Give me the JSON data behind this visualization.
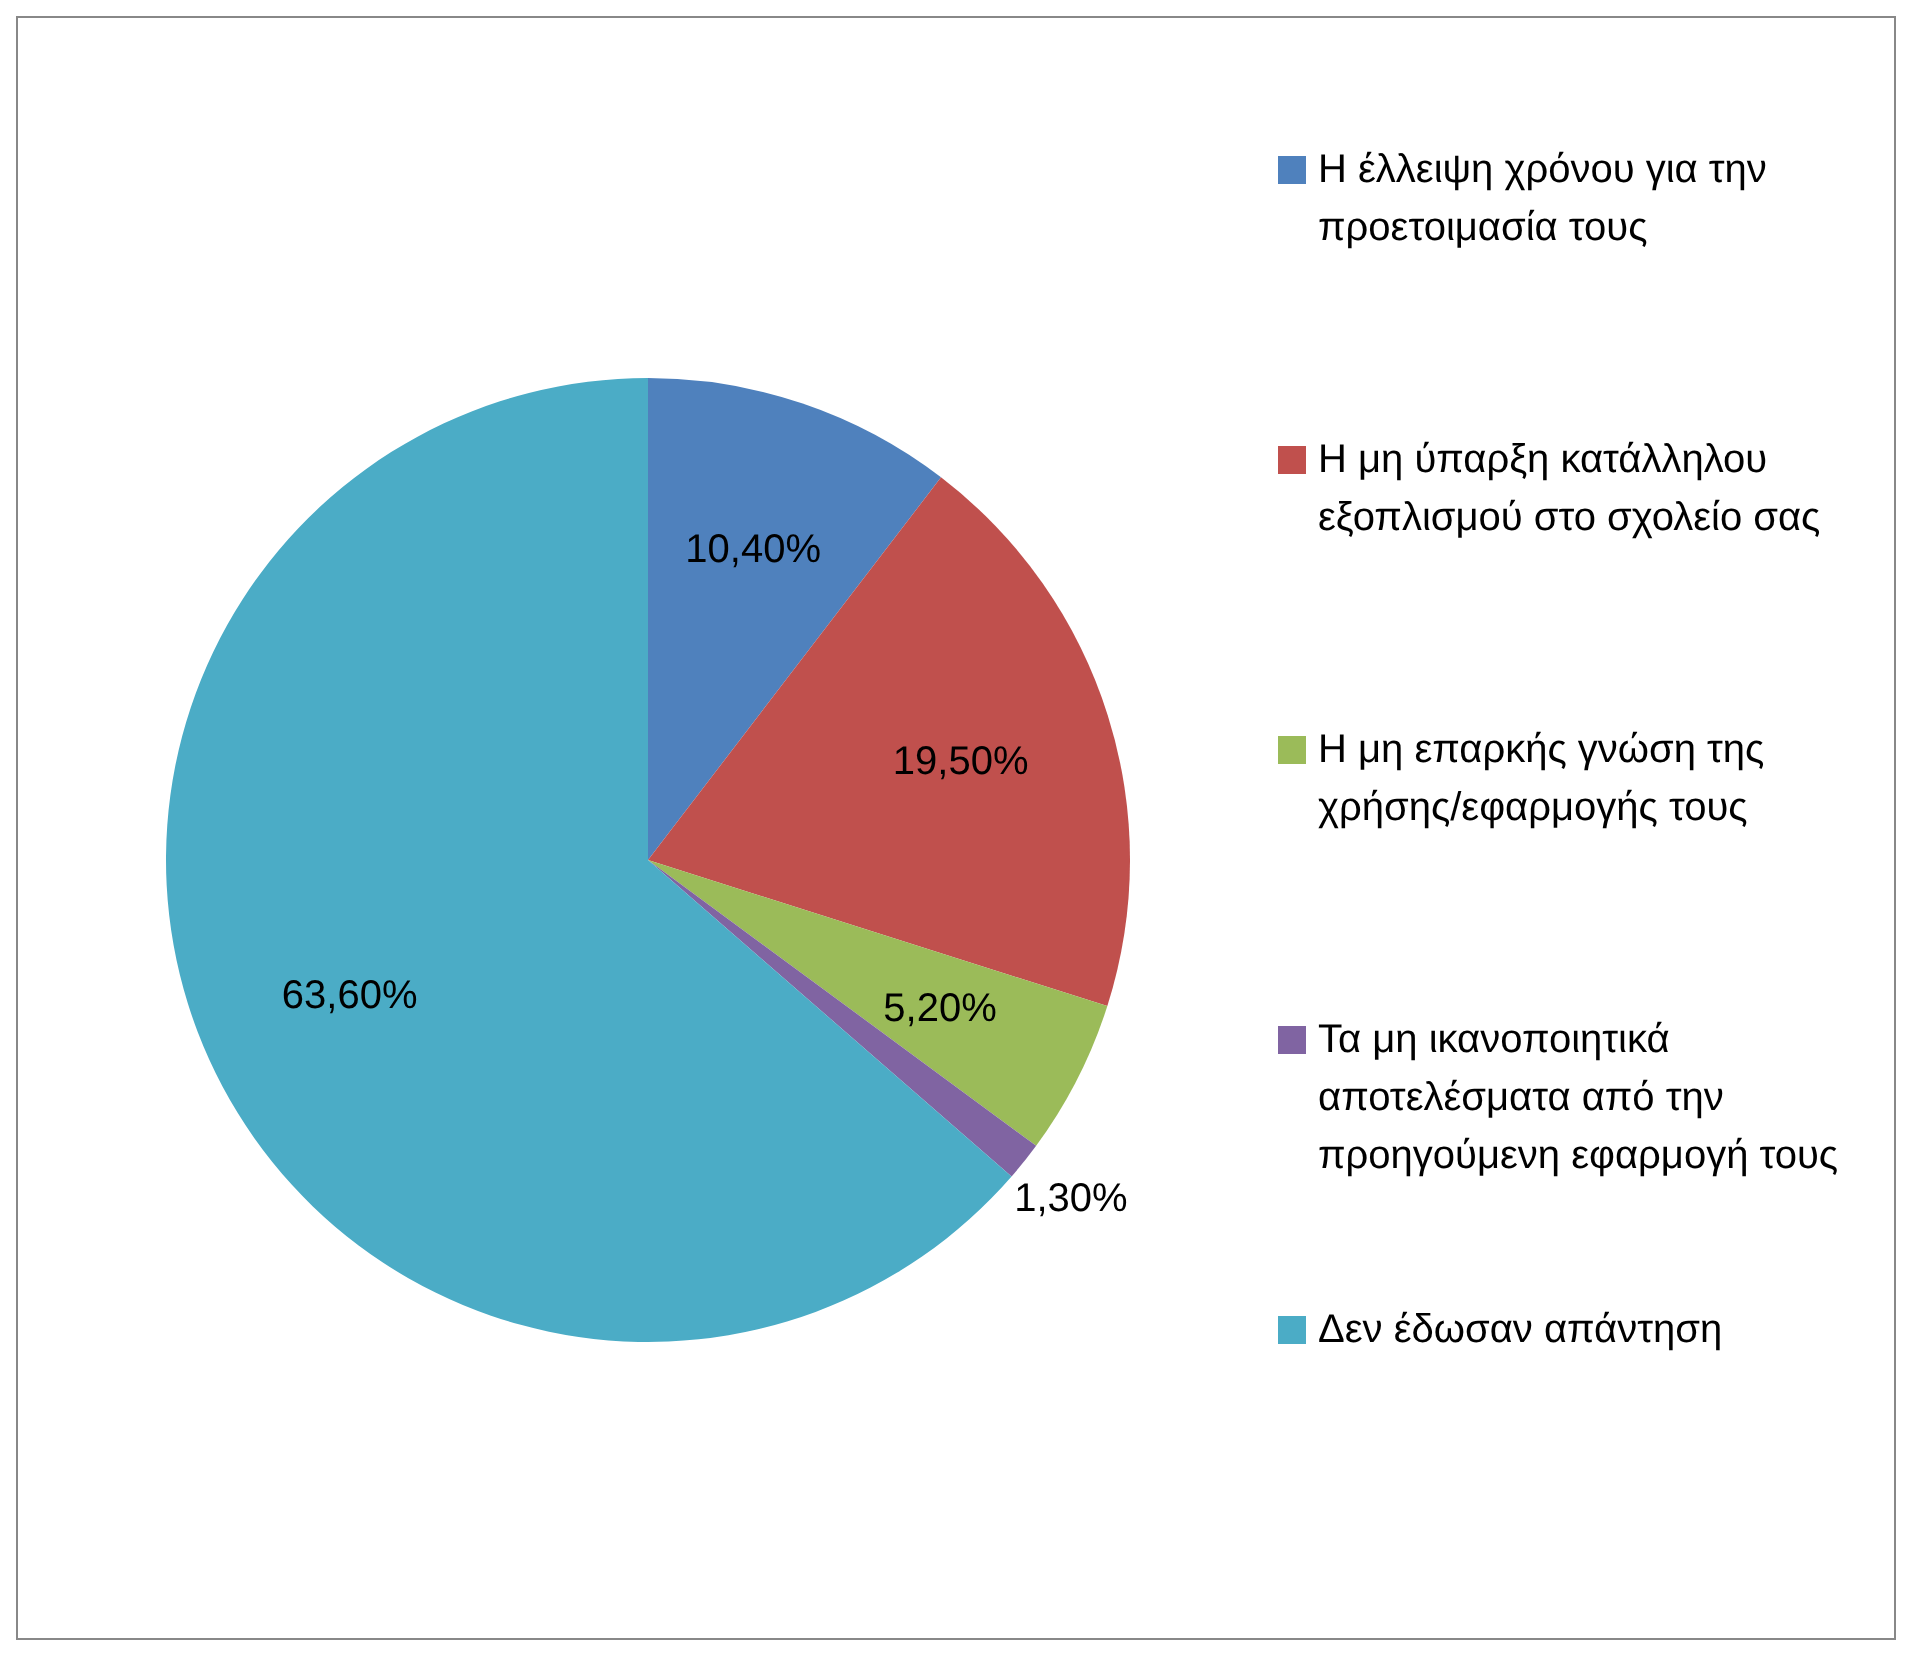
{
  "chart_data": {
    "type": "pie",
    "categories": [
      "Η έλλειψη χρόνου για την προετοιμασία τους",
      "Η μη ύπαρξη κατάλληλου εξοπλισμού στο σχολείο σας",
      "Η μη επαρκής γνώση της χρήσης/εφαρμογής τους",
      "Τα μη ικανοποιητικά αποτελέσματα από την προηγούμενη εφαρμογή τους",
      "Δεν έδωσαν απάντηση"
    ],
    "values": [
      10.4,
      19.5,
      5.2,
      1.3,
      63.6
    ],
    "value_labels": [
      "10,40%",
      "19,50%",
      "5,20%",
      "1,30%",
      "63,60%"
    ],
    "colors": [
      "#4f81bd",
      "#c0504d",
      "#9bbb59",
      "#8064a2",
      "#4bacc6"
    ],
    "legend": "right"
  }
}
